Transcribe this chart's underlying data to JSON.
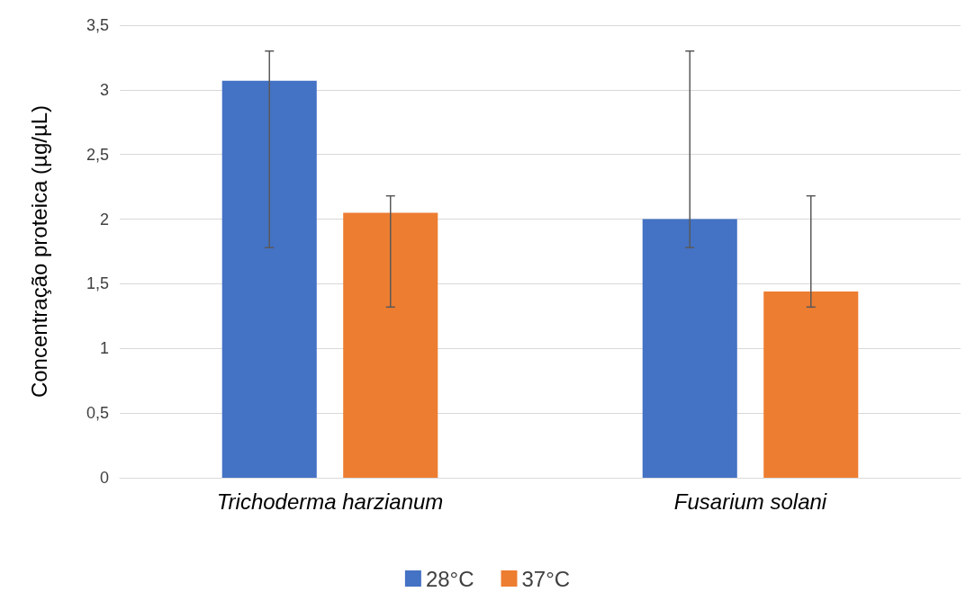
{
  "chart_data": {
    "type": "bar",
    "ylabel": "Concentração proteica (µg/µL)",
    "categories": [
      "Trichoderma harzianum",
      "Fusarium solani"
    ],
    "series": [
      {
        "name": "28°C",
        "color": "#4472c4",
        "values": [
          3.07,
          2.0
        ],
        "errors": [
          [
            1.78,
            3.3
          ],
          [
            1.78,
            3.3
          ]
        ]
      },
      {
        "name": "37°C",
        "color": "#ed7d31",
        "values": [
          2.05,
          1.44
        ],
        "errors": [
          [
            1.32,
            2.18
          ],
          [
            1.32,
            2.18
          ]
        ]
      }
    ],
    "ylim": [
      0,
      3.5
    ],
    "yticks": [
      0,
      {
        "value": 0.5,
        "label": "0,5"
      },
      1,
      {
        "value": 1.5,
        "label": "1,5"
      },
      2,
      {
        "value": 2.5,
        "label": "2,5"
      },
      3,
      {
        "value": 3.5,
        "label": "3,5"
      }
    ],
    "grid": "y",
    "legend": "bottom"
  }
}
